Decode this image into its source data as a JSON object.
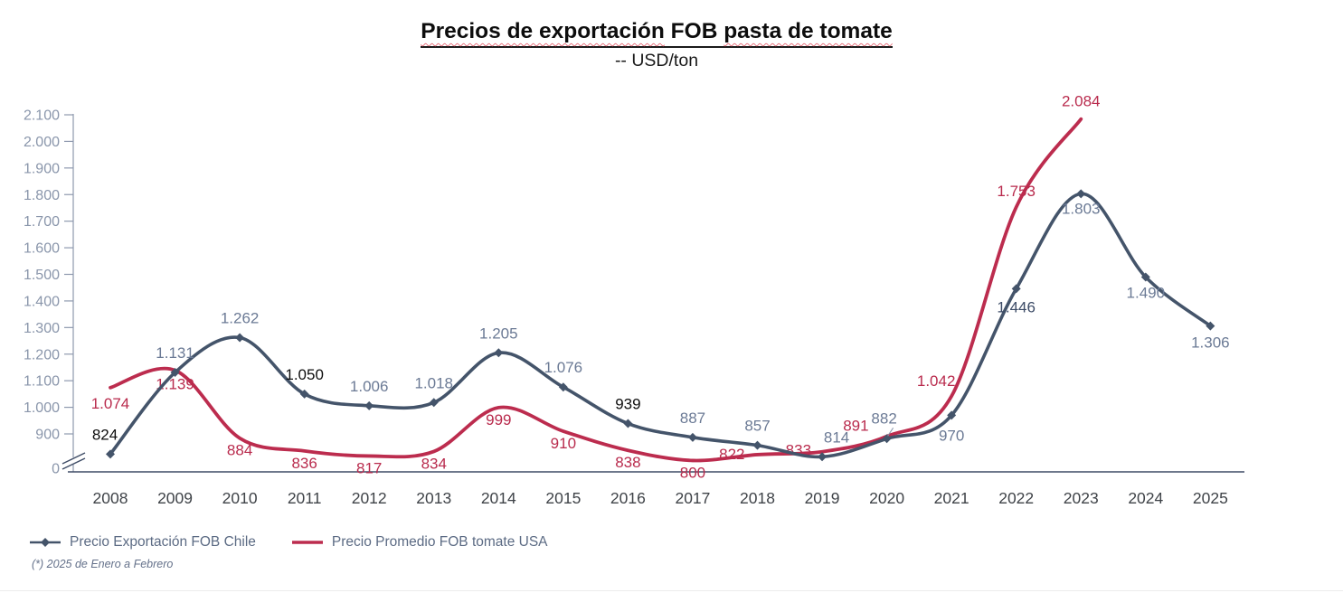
{
  "header": {
    "title_part1": "Precios de exportación",
    "title_part2": " FOB ",
    "title_part3": "pasta de tomate",
    "subtitle": "-- USD/ton"
  },
  "chart_data": {
    "type": "line",
    "title": "Precios de exportación FOB pasta de tomate",
    "subtitle": "-- USD/ton",
    "unit": "USD/ton",
    "grid": false,
    "legend_position": "bottom-left",
    "categories": [
      "2008",
      "2009",
      "2010",
      "2011",
      "2012",
      "2013",
      "2014",
      "2015",
      "2016",
      "2017",
      "2018",
      "2019",
      "2020",
      "2021",
      "2022",
      "2023",
      "2024",
      "2025"
    ],
    "series": [
      {
        "name": "Precio Exportación FOB Chile",
        "color": "#44546A",
        "marker": "diamond",
        "values": [
          824,
          1131,
          1262,
          1050,
          1006,
          1018,
          1205,
          1076,
          939,
          887,
          857,
          814,
          882,
          970,
          1446,
          1803,
          1490,
          1306
        ],
        "labels": [
          "824",
          "1.131",
          "1.262",
          "1.050",
          "1.006",
          "1.018",
          "1.205",
          "1.076",
          "939",
          "887",
          "857",
          "814",
          "882",
          "970",
          "1.446",
          "1.803",
          "1.490",
          "1.306"
        ]
      },
      {
        "name": "Precio Promedio FOB tomate USA",
        "color": "#BC2C4E",
        "marker": "none",
        "values": [
          1074,
          1139,
          884,
          836,
          817,
          834,
          999,
          910,
          838,
          800,
          822,
          833,
          891,
          1042,
          1753,
          2084
        ],
        "labels": [
          "1.074",
          "1.139",
          "884",
          "836",
          "817",
          "834",
          "999",
          "910",
          "838",
          "800",
          "822",
          "833",
          "891",
          "1.042",
          "1.753",
          "2.084"
        ]
      }
    ],
    "y_axis": {
      "has_break": true,
      "range_shown": [
        900,
        2100
      ],
      "ticks": [
        {
          "value": 0,
          "label": "0"
        },
        {
          "value": 900,
          "label": "900"
        },
        {
          "value": 1000,
          "label": "1.000"
        },
        {
          "value": 1100,
          "label": "1.100"
        },
        {
          "value": 1200,
          "label": "1.200"
        },
        {
          "value": 1300,
          "label": "1.300"
        },
        {
          "value": 1400,
          "label": "1.400"
        },
        {
          "value": 1500,
          "label": "1.500"
        },
        {
          "value": 1600,
          "label": "1.600"
        },
        {
          "value": 1700,
          "label": "1.700"
        },
        {
          "value": 1800,
          "label": "1.800"
        },
        {
          "value": 1900,
          "label": "1.900"
        },
        {
          "value": 2000,
          "label": "2.000"
        },
        {
          "value": 2100,
          "label": "2.100"
        }
      ]
    }
  },
  "legend": {
    "chile_label": "Precio Exportación FOB Chile",
    "usa_label": "Precio Promedio FOB tomate USA"
  },
  "footnote": "(*) 2025 de Enero a Febrero",
  "colors": {
    "chile_line": "#44546A",
    "usa_line": "#BC2C4E",
    "usa_label": "#B92B4D",
    "chile_label_slate": "#6B7A95",
    "chile_label_dark": "#3C4B66",
    "chile_label_black": "#0D0D0D",
    "y_tick_text": "#8A96AB",
    "x_tick_text": "#3F4348",
    "y_axis_line": "#8E99AE",
    "x_axis_line": "#3E4C66"
  }
}
